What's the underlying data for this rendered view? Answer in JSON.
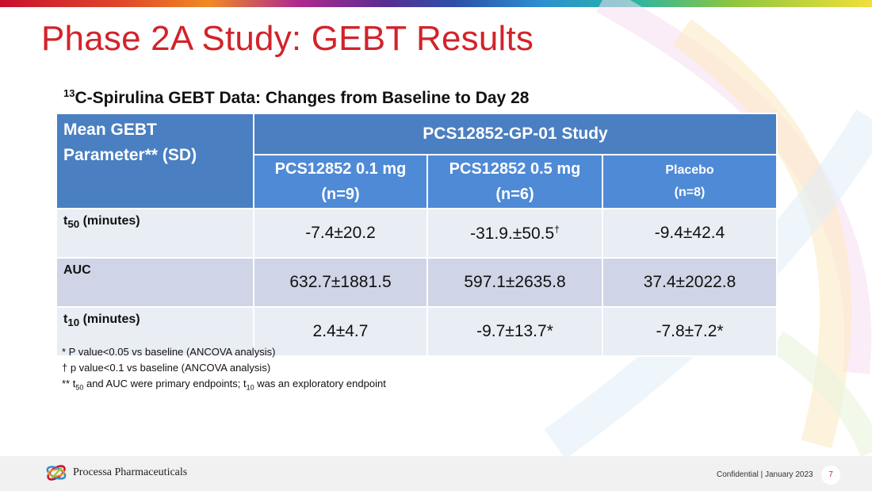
{
  "header": {
    "title": "Phase 2A Study: GEBT Results"
  },
  "subtitle": {
    "sup": "13",
    "text": "C-Spirulina GEBT Data: Changes from Baseline to Day 28"
  },
  "table": {
    "param_header_line1": "Mean GEBT",
    "param_header_line2": "Parameter** (SD)",
    "study_header": "PCS12852-GP-01 Study",
    "columns": [
      {
        "name": "PCS12852 0.1 mg",
        "n": "(n=9)"
      },
      {
        "name": "PCS12852 0.5 mg",
        "n": "(n=6)"
      },
      {
        "name": "Placebo",
        "n": "(n=8)"
      }
    ],
    "rows": [
      {
        "label_main": "t",
        "label_sub": "50",
        "label_rest": " (minutes)",
        "values": [
          "-7.4±20.2",
          "-31.9.±50.5",
          "-9.4±42.4"
        ],
        "value2_sup": "†"
      },
      {
        "label_main": "AUC",
        "values": [
          "632.7±1881.5",
          "597.1±2635.8",
          "37.4±2022.8"
        ]
      },
      {
        "label_main": "t",
        "label_sub": "10",
        "label_rest": " (minutes)",
        "values": [
          "2.4±4.7",
          "-9.7±13.7*",
          "-7.8±7.2*"
        ]
      }
    ]
  },
  "footnotes": {
    "note1": "* P value<0.05 vs baseline (ANCOVA analysis)",
    "note2": "† p value<0.1 vs baseline (ANCOVA analysis)",
    "note3_a": "** t",
    "note3_sub1": "50",
    "note3_b": " and AUC were primary endpoints; t",
    "note3_sub2": "10",
    "note3_c": " was an exploratory endpoint"
  },
  "footer": {
    "logo_text": "Processa Pharmaceuticals",
    "confidential": "Confidential | January 2023",
    "page_number": "7"
  }
}
